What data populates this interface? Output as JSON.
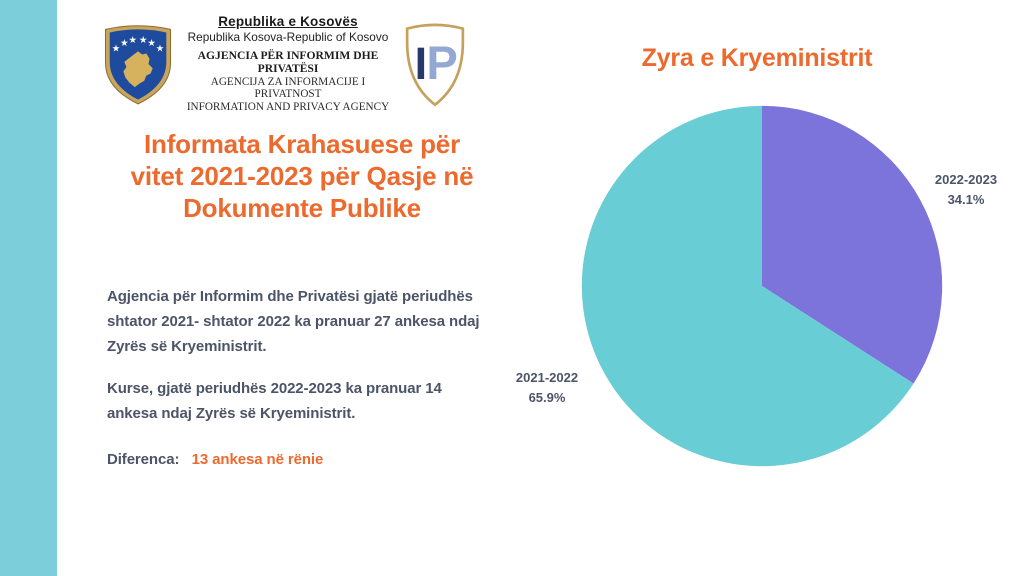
{
  "slide": {
    "background": "#ffffff",
    "accent_bar_color": "#7CCEDA",
    "accent_orange": "#EC6A2E",
    "text_dark": "#4C5568"
  },
  "header": {
    "emblem": "kosovo-coat-of-arms",
    "org_name_sq": "Republika e Kosovës",
    "org_name_sr_en": "Republika Kosova-Republic of Kosovo",
    "agency_sq": "AGJENCIA PËR INFORMIM DHE PRIVATËSI",
    "agency_sr": "AGENCIJA ZA INFORMACIJE I PRIVATNOST",
    "agency_en": "INFORMATION AND PRIVACY AGENCY",
    "logo_i": "I",
    "logo_p": "P"
  },
  "content": {
    "title_lines": [
      "Informata Krahasuese për",
      "vitet 2021-2023 për Qasje në",
      "Dokumente Publike"
    ],
    "paragraph_1": "Agjencia për Informim dhe Privatësi gjatë periudhës shtator 2021- shtator 2022 ka pranuar 27 ankesa ndaj Zyrës së Kryeministrit.",
    "paragraph_2": "Kurse, gjatë periudhës 2022-2023 ka pranuar 14 ankesa ndaj Zyrës së Kryeministrit.",
    "difference_label": "Diferenca:",
    "difference_value": "13 ankesa në rënie"
  },
  "chart_title": "Zyra e Kryeministrit",
  "chart_data": {
    "type": "pie",
    "title": "Zyra e Kryeministrit",
    "categories": [
      "2022-2023",
      "2021-2022"
    ],
    "values": [
      34.1,
      65.9
    ],
    "unit": "%",
    "colors": [
      "#7C73DB",
      "#69CDD5"
    ],
    "start_angle_deg_from_top": 0,
    "direction": "clockwise",
    "legend": "none",
    "labels": [
      {
        "line1": "2022-2023",
        "line2": "34.1%",
        "position": "right-of-chart"
      },
      {
        "line1": "2021-2022",
        "line2": "65.9%",
        "position": "left-of-chart"
      }
    ]
  }
}
